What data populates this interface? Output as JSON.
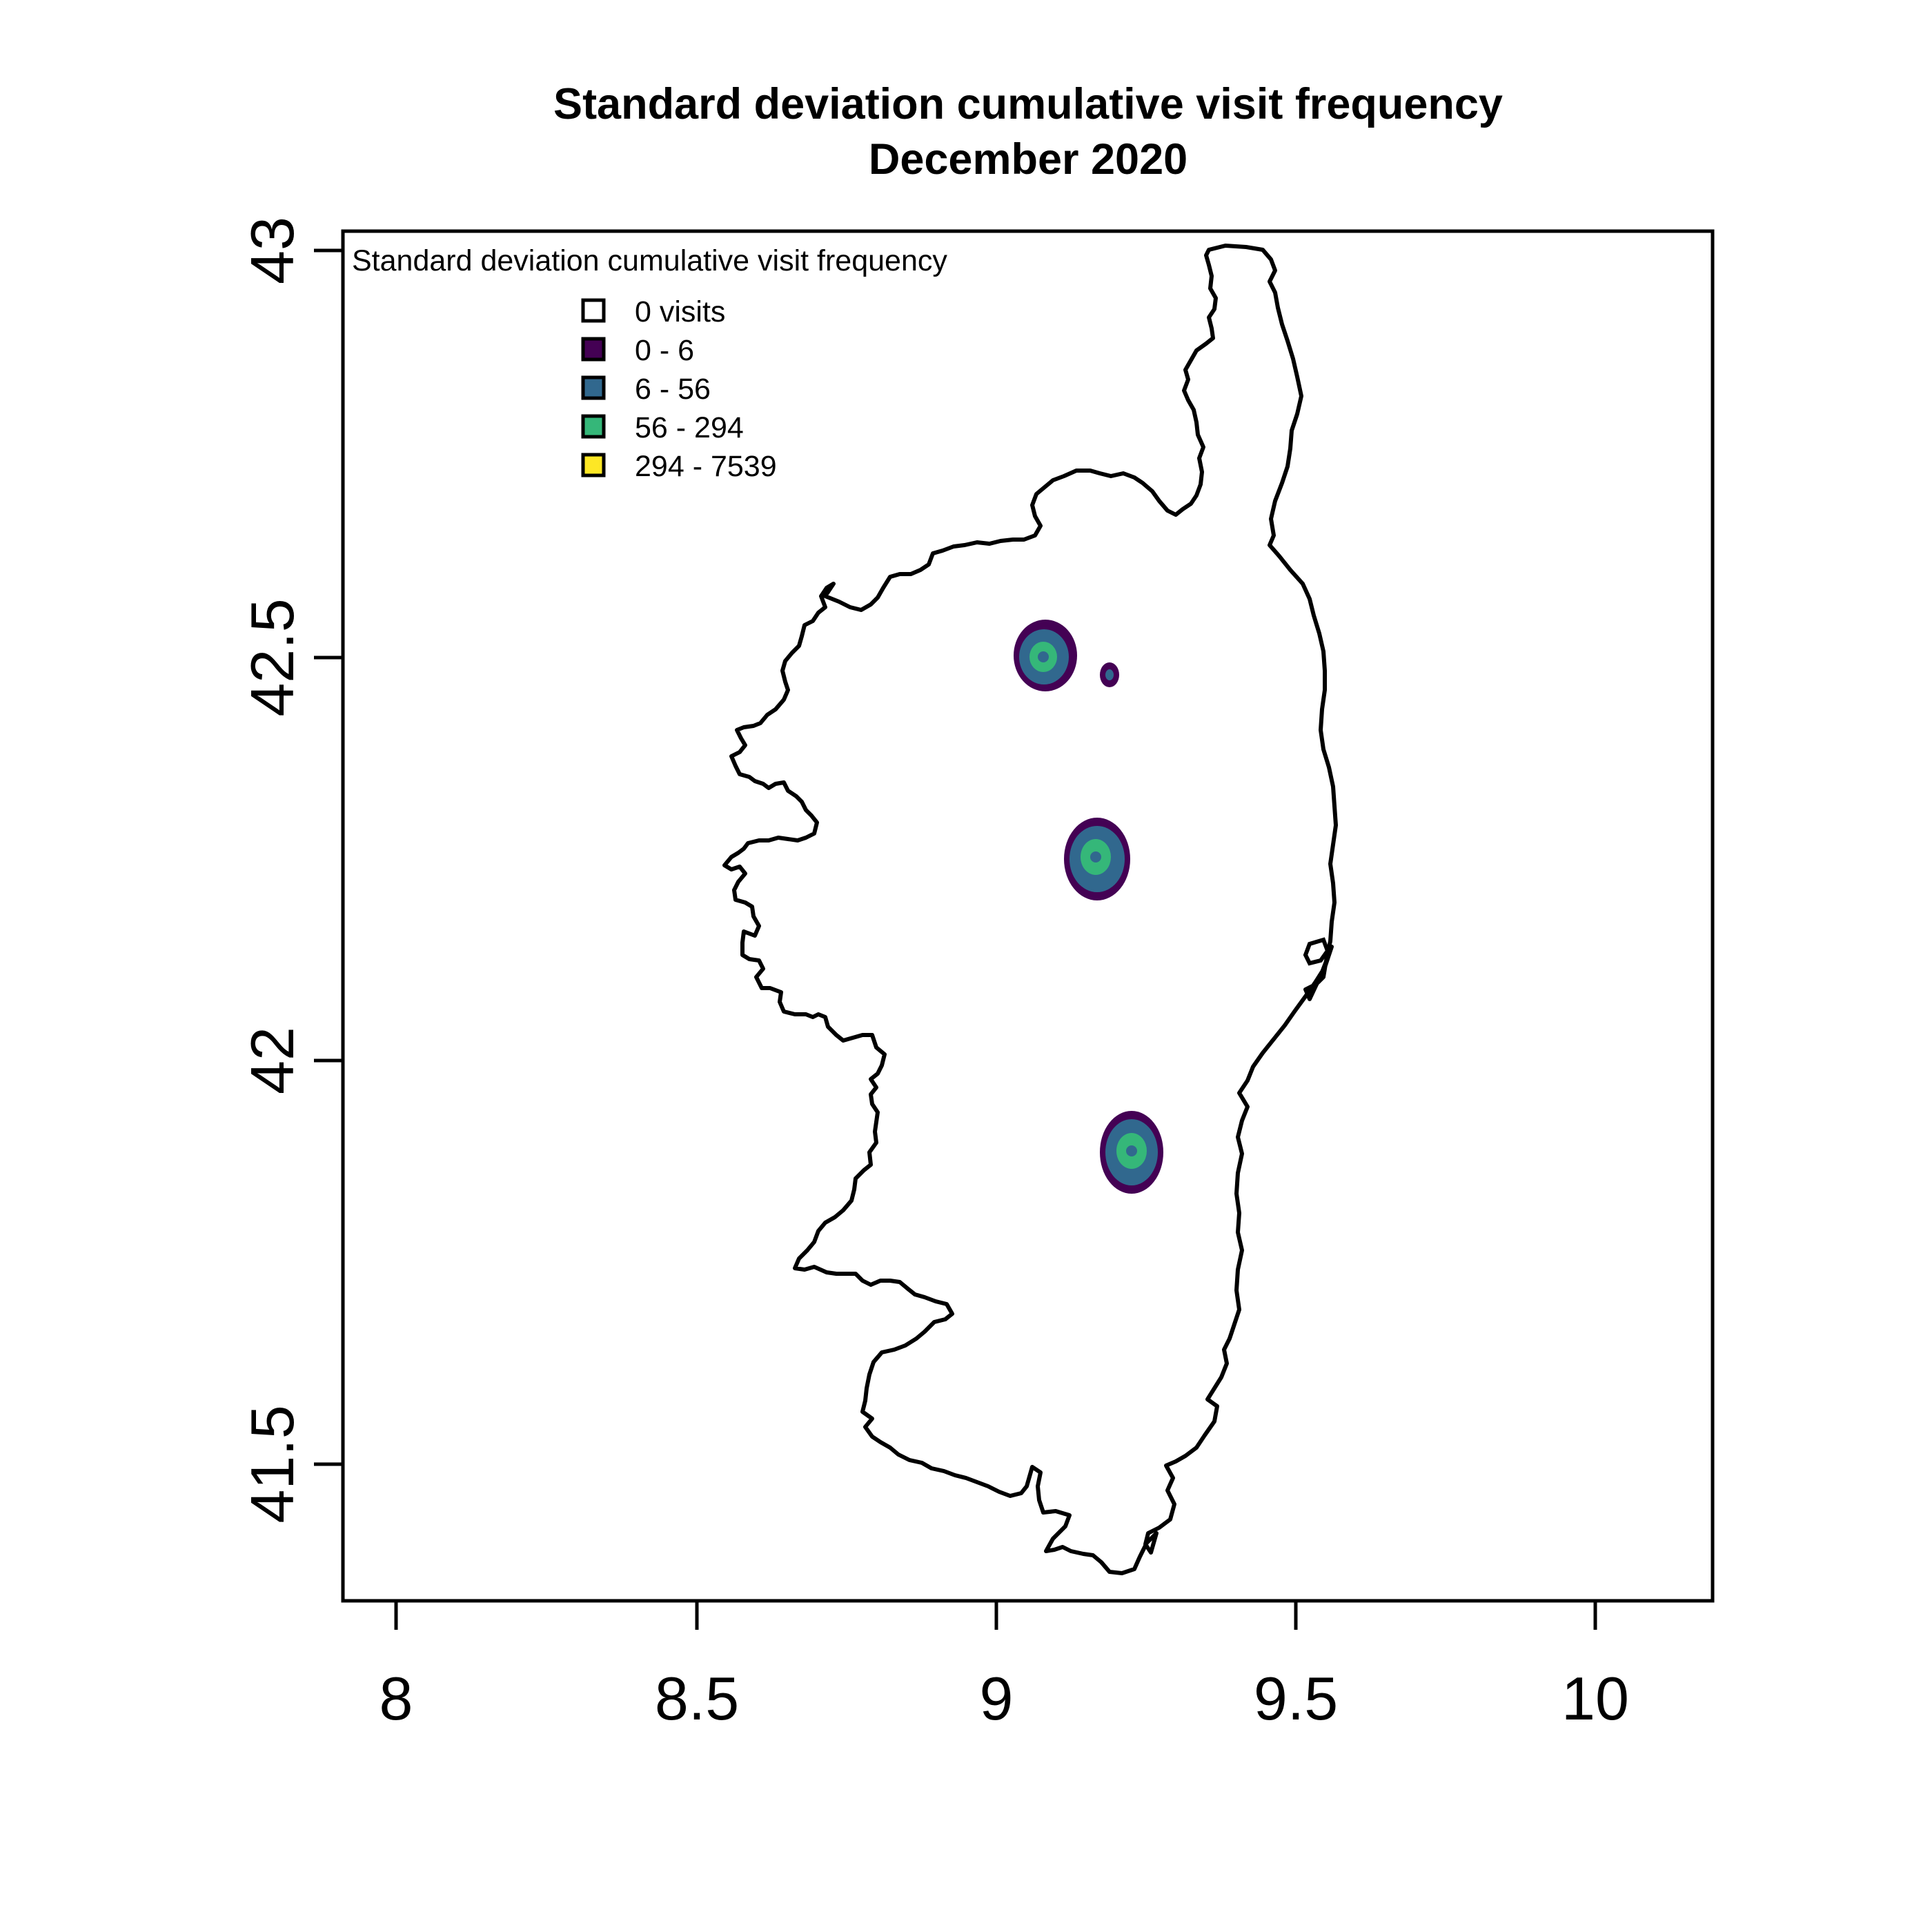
{
  "title": {
    "line1": "Standard deviation cumulative visit frequency",
    "line2": "December 2020"
  },
  "axes": {
    "x_ticks": [
      "8",
      "8.5",
      "9",
      "9.5",
      "10"
    ],
    "y_ticks": [
      "43",
      "42.5",
      "42",
      "41.5"
    ],
    "x_range": [
      7.91,
      10.2
    ],
    "y_range": [
      41.33,
      43.03
    ]
  },
  "legend": {
    "title": "Standard deviation cumulative visit frequency",
    "placement": "top-left",
    "items": [
      {
        "label": "0 visits",
        "color": "#ffffff"
      },
      {
        "label": "0 - 6",
        "color": "#440154"
      },
      {
        "label": "6 - 56",
        "color": "#31688e"
      },
      {
        "label": "56 - 294",
        "color": "#35b779"
      },
      {
        "label": "294 - 7539",
        "color": "#fde725"
      }
    ]
  },
  "hotspots": [
    {
      "lon": 9.08,
      "lat": 42.5
    },
    {
      "lon": 9.19,
      "lat": 42.48
    },
    {
      "lon": 9.17,
      "lat": 42.25
    },
    {
      "lon": 9.23,
      "lat": 41.88
    }
  ]
}
